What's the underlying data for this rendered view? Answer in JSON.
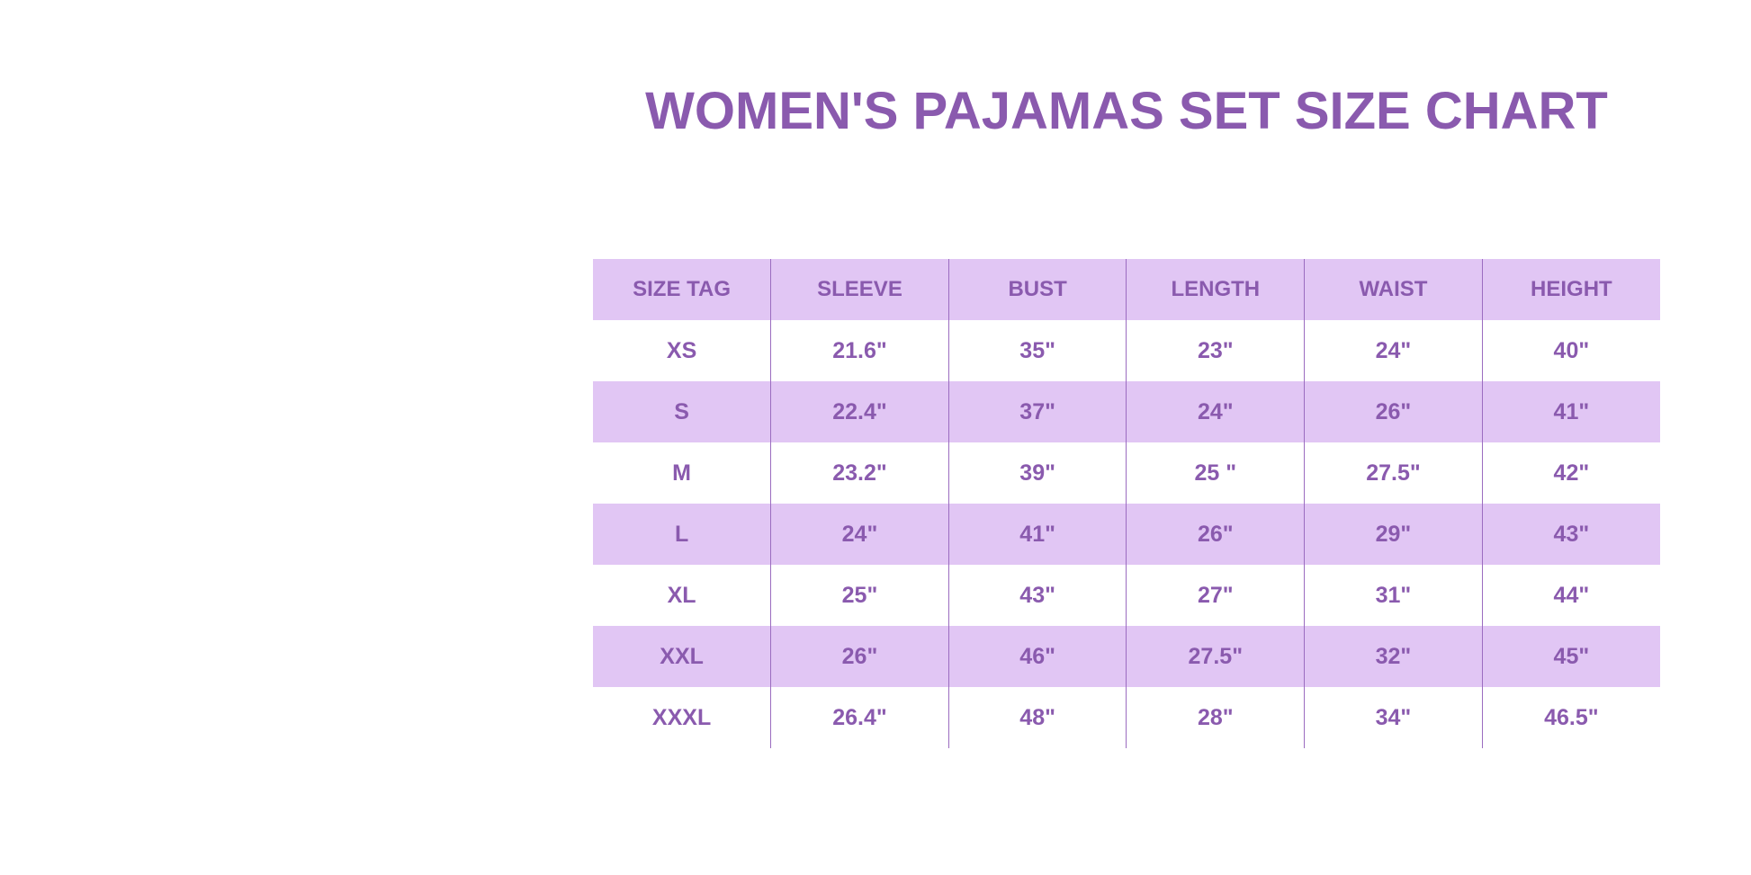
{
  "title": "WOMEN'S PAJAMAS SET SIZE CHART",
  "colors": {
    "accent": "#8a5aae",
    "row_fill": "#e1c6f4"
  },
  "table": {
    "headers": [
      "SIZE TAG",
      "SLEEVE",
      "BUST",
      "LENGTH",
      "WAIST",
      "HEIGHT"
    ],
    "rows": [
      [
        "XS",
        "21.6\"",
        "35\"",
        "23\"",
        "24\"",
        "40\""
      ],
      [
        "S",
        "22.4\"",
        "37\"",
        "24\"",
        "26\"",
        "41\""
      ],
      [
        "M",
        "23.2\"",
        "39\"",
        "25 \"",
        "27.5\"",
        "42\""
      ],
      [
        "L",
        "24\"",
        "41\"",
        "26\"",
        "29\"",
        "43\""
      ],
      [
        "XL",
        "25\"",
        "43\"",
        "27\"",
        "31\"",
        "44\""
      ],
      [
        "XXL",
        "26\"",
        "46\"",
        "27.5\"",
        "32\"",
        "45\""
      ],
      [
        "XXXL",
        "26.4\"",
        "48\"",
        "28\"",
        "34\"",
        "46.5\""
      ]
    ]
  }
}
